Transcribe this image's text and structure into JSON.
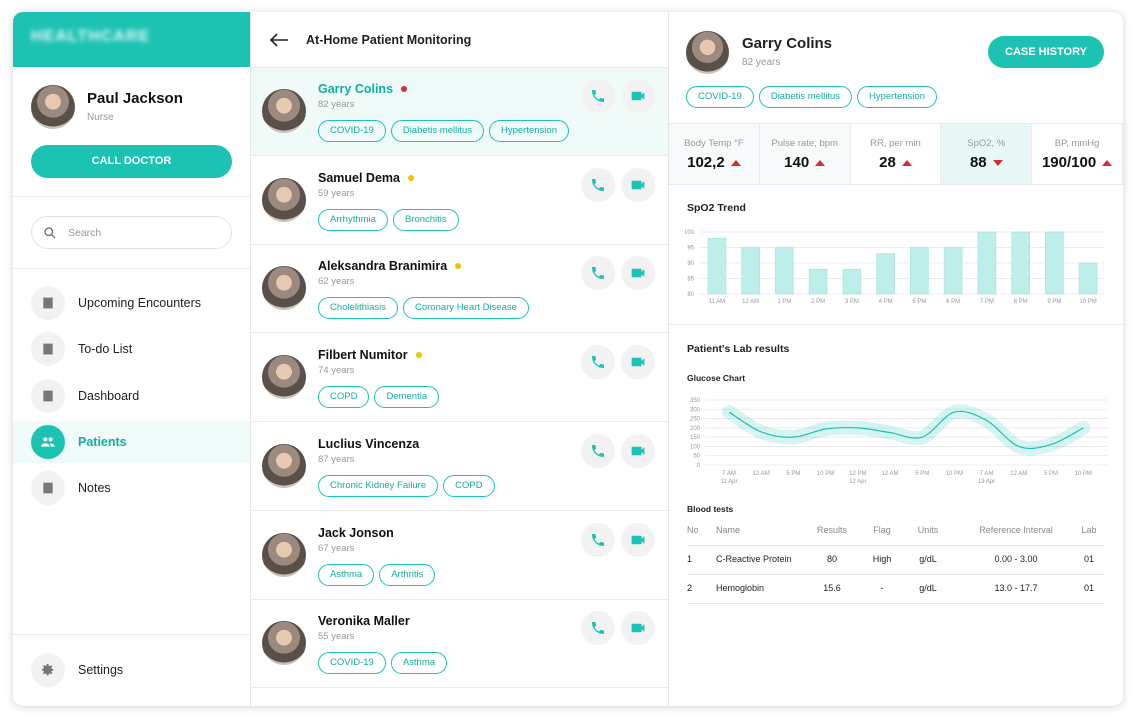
{
  "sidebar": {
    "brand": "HEALTHCARE",
    "user": {
      "name": "Paul Jackson",
      "role": "Nurse"
    },
    "call_button": "CALL DOCTOR",
    "search_placeholder": "Search",
    "nav": [
      {
        "label": "Upcoming Encounters"
      },
      {
        "label": "To-do List"
      },
      {
        "label": "Dashboard"
      },
      {
        "label": "Patients",
        "active": true
      },
      {
        "label": "Notes"
      }
    ],
    "settings": "Settings"
  },
  "patient_list": {
    "title": "At-Home Patient Monitoring",
    "patients": [
      {
        "name": "Garry Colins",
        "status_color": "#d32f2f",
        "age": "82 years",
        "tags": [
          "COVID-19",
          "Diabetis mellitus",
          "Hypertension"
        ],
        "selected": true
      },
      {
        "name": "Samuel Dema",
        "status_color": "#f2c200",
        "age": "59 years",
        "tags": [
          "Arrhythmia",
          "Bronchitis"
        ]
      },
      {
        "name": "Aleksandra Branimira",
        "status_color": "#f2c200",
        "age": "62 years",
        "tags": [
          "Cholelithiasis",
          "Coronary Heart Disease"
        ]
      },
      {
        "name": "Filbert Numitor",
        "status_color": "#f2c200",
        "age": "74 years",
        "tags": [
          "COPD",
          "Dementia"
        ]
      },
      {
        "name": "Luclius Vincenza",
        "age": "87 years",
        "tags": [
          "Chronic Kidney Failure",
          "COPD"
        ]
      },
      {
        "name": "Jack Jonson",
        "age": "67 years",
        "tags": [
          "Asthma",
          "Arthritis"
        ]
      },
      {
        "name": "Veronika Maller",
        "age": "55 years",
        "tags": [
          "COVID-19",
          "Asthma"
        ]
      }
    ]
  },
  "detail": {
    "name": "Garry Colins",
    "age": "82 years",
    "case_button": "CASE HISTORY",
    "tags": [
      "COVID-19",
      "Diabetis mellitus",
      "Hypertension"
    ],
    "vitals": [
      {
        "label": "Body Temp °F",
        "value": "102,2",
        "trend": "up"
      },
      {
        "label": "Pulse rate, bpm",
        "value": "140",
        "trend": "up"
      },
      {
        "label": "RR, per min",
        "value": "28",
        "trend": "up"
      },
      {
        "label": "SpO2, %",
        "value": "88",
        "trend": "down",
        "selected": true
      },
      {
        "label": "BP, mmHg",
        "value": "190/100",
        "trend": "up"
      }
    ],
    "spo2_trend": {
      "type": "bar",
      "title": "SpO2 Trend",
      "categories": [
        "11 AM",
        "12 AM",
        "1 PM",
        "2 PM",
        "3 PM",
        "4 PM",
        "5 PM",
        "6 PM",
        "7 PM",
        "8 PM",
        "9 PM",
        "10 PM"
      ],
      "values": [
        98,
        95,
        95,
        88,
        88,
        93,
        95,
        95,
        100,
        100,
        100,
        90
      ],
      "ylim": [
        80,
        100
      ],
      "yticks": [
        80,
        85,
        90,
        95,
        100
      ],
      "color": "#bdeee9",
      "grid": true
    },
    "lab": {
      "title": "Patient's Lab results",
      "glucose_chart": {
        "type": "line",
        "title": "Glucose Chart",
        "categories": [
          "7 AM",
          "12 AM",
          "5 PM",
          "10 PM",
          "12 PM",
          "12 AM",
          "5 PM",
          "10 PM",
          "7 AM",
          "12 AM",
          "5 PM",
          "10 PM"
        ],
        "sublabels": [
          "11 Apr",
          null,
          null,
          null,
          "12 Apr",
          null,
          null,
          null,
          "13 Apr",
          null,
          null,
          null
        ],
        "values": [
          285,
          178,
          150,
          194,
          200,
          175,
          150,
          285,
          240,
          100,
          110,
          200
        ],
        "ylim": [
          0,
          350
        ],
        "yticks": [
          0,
          50,
          100,
          150,
          200,
          250,
          300,
          350
        ],
        "color": "#1cc3b3",
        "grid": true
      },
      "blood_tests": {
        "title": "Blood tests",
        "columns": [
          "No",
          "Name",
          "Results",
          "Flag",
          "Units",
          "Reference Interval",
          "Lab"
        ],
        "rows": [
          [
            "1",
            "C-Reactive Protein",
            "80",
            "High",
            "g/dL",
            "0.00 - 3.00",
            "01"
          ],
          [
            "2",
            "Hemoglobin",
            "15.6",
            "-",
            "g/dL",
            "13.0 - 17.7",
            "01"
          ]
        ]
      }
    }
  }
}
